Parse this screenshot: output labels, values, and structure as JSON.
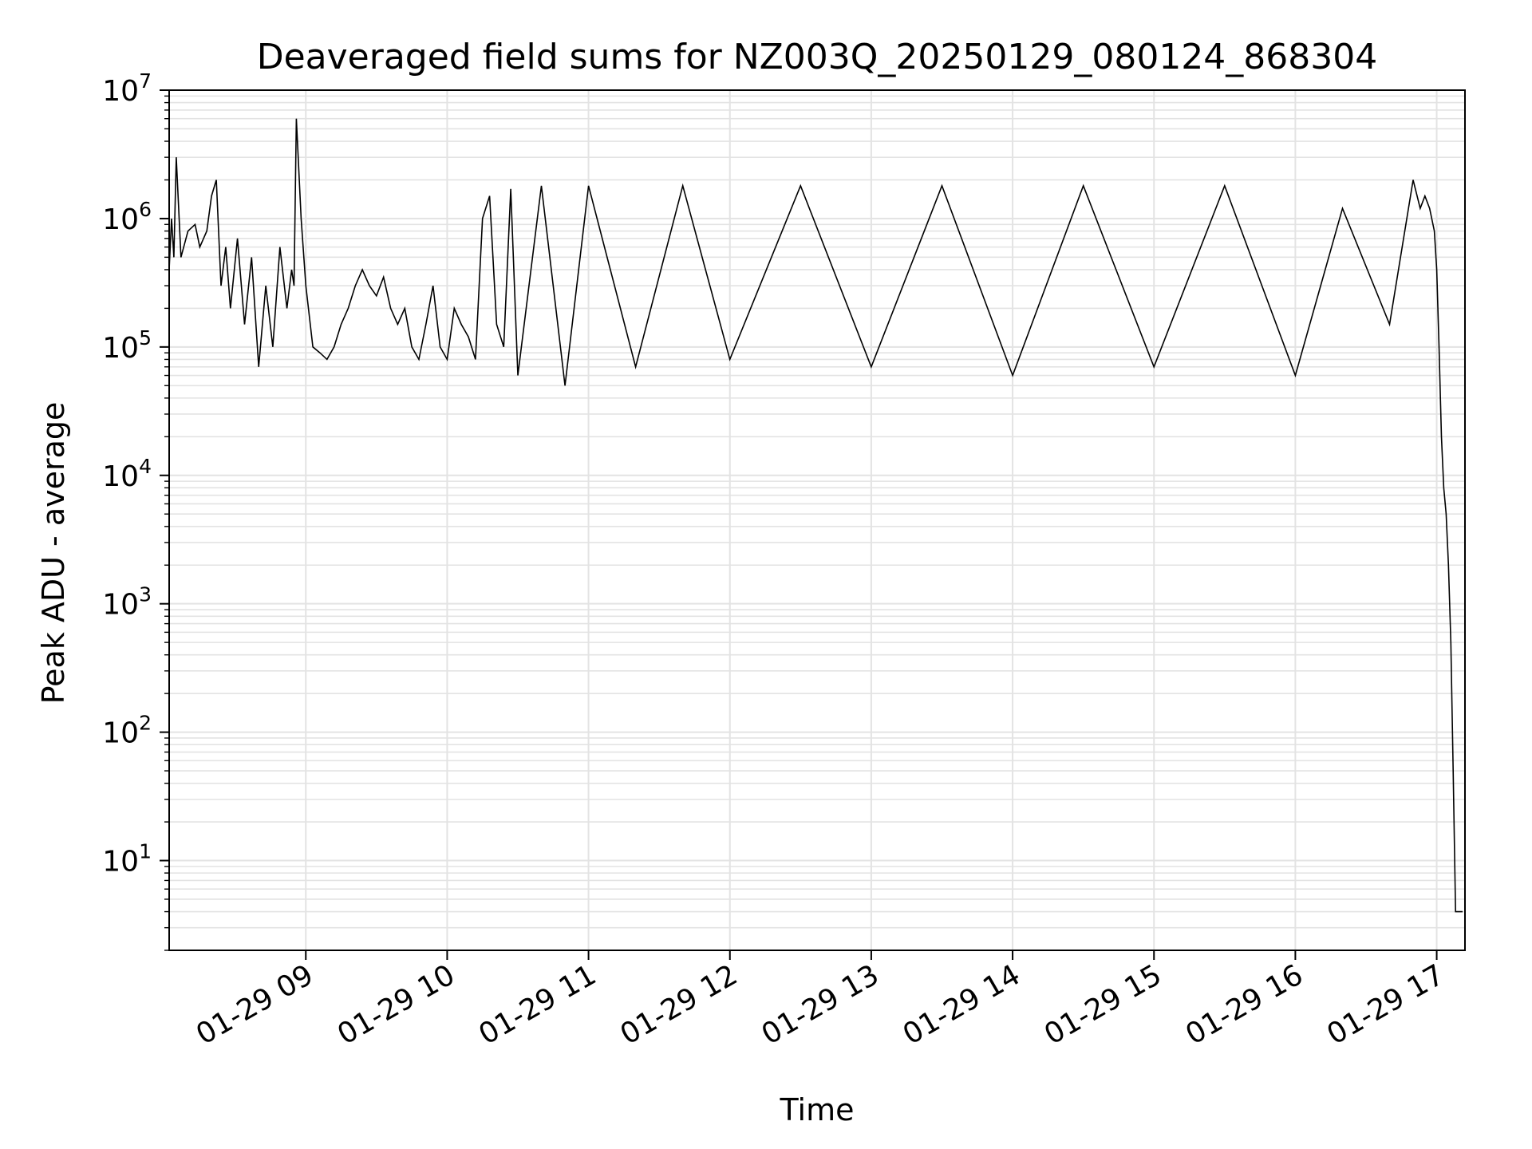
{
  "chart_data": {
    "type": "line",
    "title": "Deaveraged field sums for NZ003Q_20250129_080124_868304",
    "xlabel": "Time",
    "ylabel": "Peak ADU - average",
    "yscale": "log",
    "xlim": [
      "2025-01-29 08:02",
      "2025-01-29 17:12"
    ],
    "ylim": [
      2,
      10000000
    ],
    "grid": true,
    "x_tick_labels": [
      "01-29 09",
      "01-29 10",
      "01-29 11",
      "01-29 12",
      "01-29 13",
      "01-29 14",
      "01-29 15",
      "01-29 16",
      "01-29 17"
    ],
    "y_tick_labels": [
      {
        "base": "10",
        "exp": "1"
      },
      {
        "base": "10",
        "exp": "2"
      },
      {
        "base": "10",
        "exp": "3"
      },
      {
        "base": "10",
        "exp": "4"
      },
      {
        "base": "10",
        "exp": "5"
      },
      {
        "base": "10",
        "exp": "6"
      },
      {
        "base": "10",
        "exp": "7"
      }
    ],
    "line_color": "#000000",
    "grid_color": "#e3e3e3",
    "series": [
      {
        "x": [
          "2025-01-29 08:02",
          "2025-01-29 08:03",
          "2025-01-29 08:04",
          "2025-01-29 08:05",
          "2025-01-29 08:07",
          "2025-01-29 08:10",
          "2025-01-29 08:13",
          "2025-01-29 08:15",
          "2025-01-29 08:18",
          "2025-01-29 08:20",
          "2025-01-29 08:22",
          "2025-01-29 08:24",
          "2025-01-29 08:26",
          "2025-01-29 08:28",
          "2025-01-29 08:31",
          "2025-01-29 08:34",
          "2025-01-29 08:37",
          "2025-01-29 08:40",
          "2025-01-29 08:43",
          "2025-01-29 08:46",
          "2025-01-29 08:49",
          "2025-01-29 08:52",
          "2025-01-29 08:54",
          "2025-01-29 08:55",
          "2025-01-29 08:56",
          "2025-01-29 08:58",
          "2025-01-29 09:00",
          "2025-01-29 09:03",
          "2025-01-29 09:06",
          "2025-01-29 09:09",
          "2025-01-29 09:12",
          "2025-01-29 09:15",
          "2025-01-29 09:18",
          "2025-01-29 09:21",
          "2025-01-29 09:24",
          "2025-01-29 09:27",
          "2025-01-29 09:30",
          "2025-01-29 09:33",
          "2025-01-29 09:36",
          "2025-01-29 09:39",
          "2025-01-29 09:42",
          "2025-01-29 09:45",
          "2025-01-29 09:48",
          "2025-01-29 09:51",
          "2025-01-29 09:54",
          "2025-01-29 09:57",
          "2025-01-29 10:00",
          "2025-01-29 10:03",
          "2025-01-29 10:06",
          "2025-01-29 10:09",
          "2025-01-29 10:12",
          "2025-01-29 10:15",
          "2025-01-29 10:18",
          "2025-01-29 10:21",
          "2025-01-29 10:24",
          "2025-01-29 10:27",
          "2025-01-29 10:30",
          "2025-01-29 10:40",
          "2025-01-29 10:50",
          "2025-01-29 11:00",
          "2025-01-29 11:20",
          "2025-01-29 11:40",
          "2025-01-29 12:00",
          "2025-01-29 12:30",
          "2025-01-29 13:00",
          "2025-01-29 13:30",
          "2025-01-29 14:00",
          "2025-01-29 14:30",
          "2025-01-29 15:00",
          "2025-01-29 15:30",
          "2025-01-29 16:00",
          "2025-01-29 16:20",
          "2025-01-29 16:40",
          "2025-01-29 16:50",
          "2025-01-29 16:53",
          "2025-01-29 16:55",
          "2025-01-29 16:57",
          "2025-01-29 16:59",
          "2025-01-29 17:00",
          "2025-01-29 17:01",
          "2025-01-29 17:02",
          "2025-01-29 17:03",
          "2025-01-29 17:04",
          "2025-01-29 17:05",
          "2025-01-29 17:06",
          "2025-01-29 17:07",
          "2025-01-29 17:08",
          "2025-01-29 17:09",
          "2025-01-29 17:10",
          "2025-01-29 17:11"
        ],
        "y": [
          400000,
          1000000,
          500000,
          3000000,
          500000,
          800000,
          900000,
          600000,
          800000,
          1500000,
          2000000,
          300000,
          600000,
          200000,
          700000,
          150000,
          500000,
          70000,
          300000,
          100000,
          600000,
          200000,
          400000,
          300000,
          6000000,
          1000000,
          300000,
          100000,
          90000,
          80000,
          100000,
          150000,
          200000,
          300000,
          400000,
          300000,
          250000,
          350000,
          200000,
          150000,
          200000,
          100000,
          80000,
          150000,
          300000,
          100000,
          80000,
          200000,
          150000,
          120000,
          80000,
          1000000,
          1500000,
          150000,
          100000,
          1700000,
          60000,
          1800000,
          50000,
          1800000,
          70000,
          1800000,
          80000,
          1800000,
          70000,
          1800000,
          60000,
          1800000,
          70000,
          1800000,
          60000,
          1200000,
          150000,
          2000000,
          1200000,
          1500000,
          1200000,
          800000,
          400000,
          100000,
          20000,
          8000,
          5000,
          2000,
          500,
          50,
          4,
          4,
          4,
          4
        ]
      }
    ]
  }
}
